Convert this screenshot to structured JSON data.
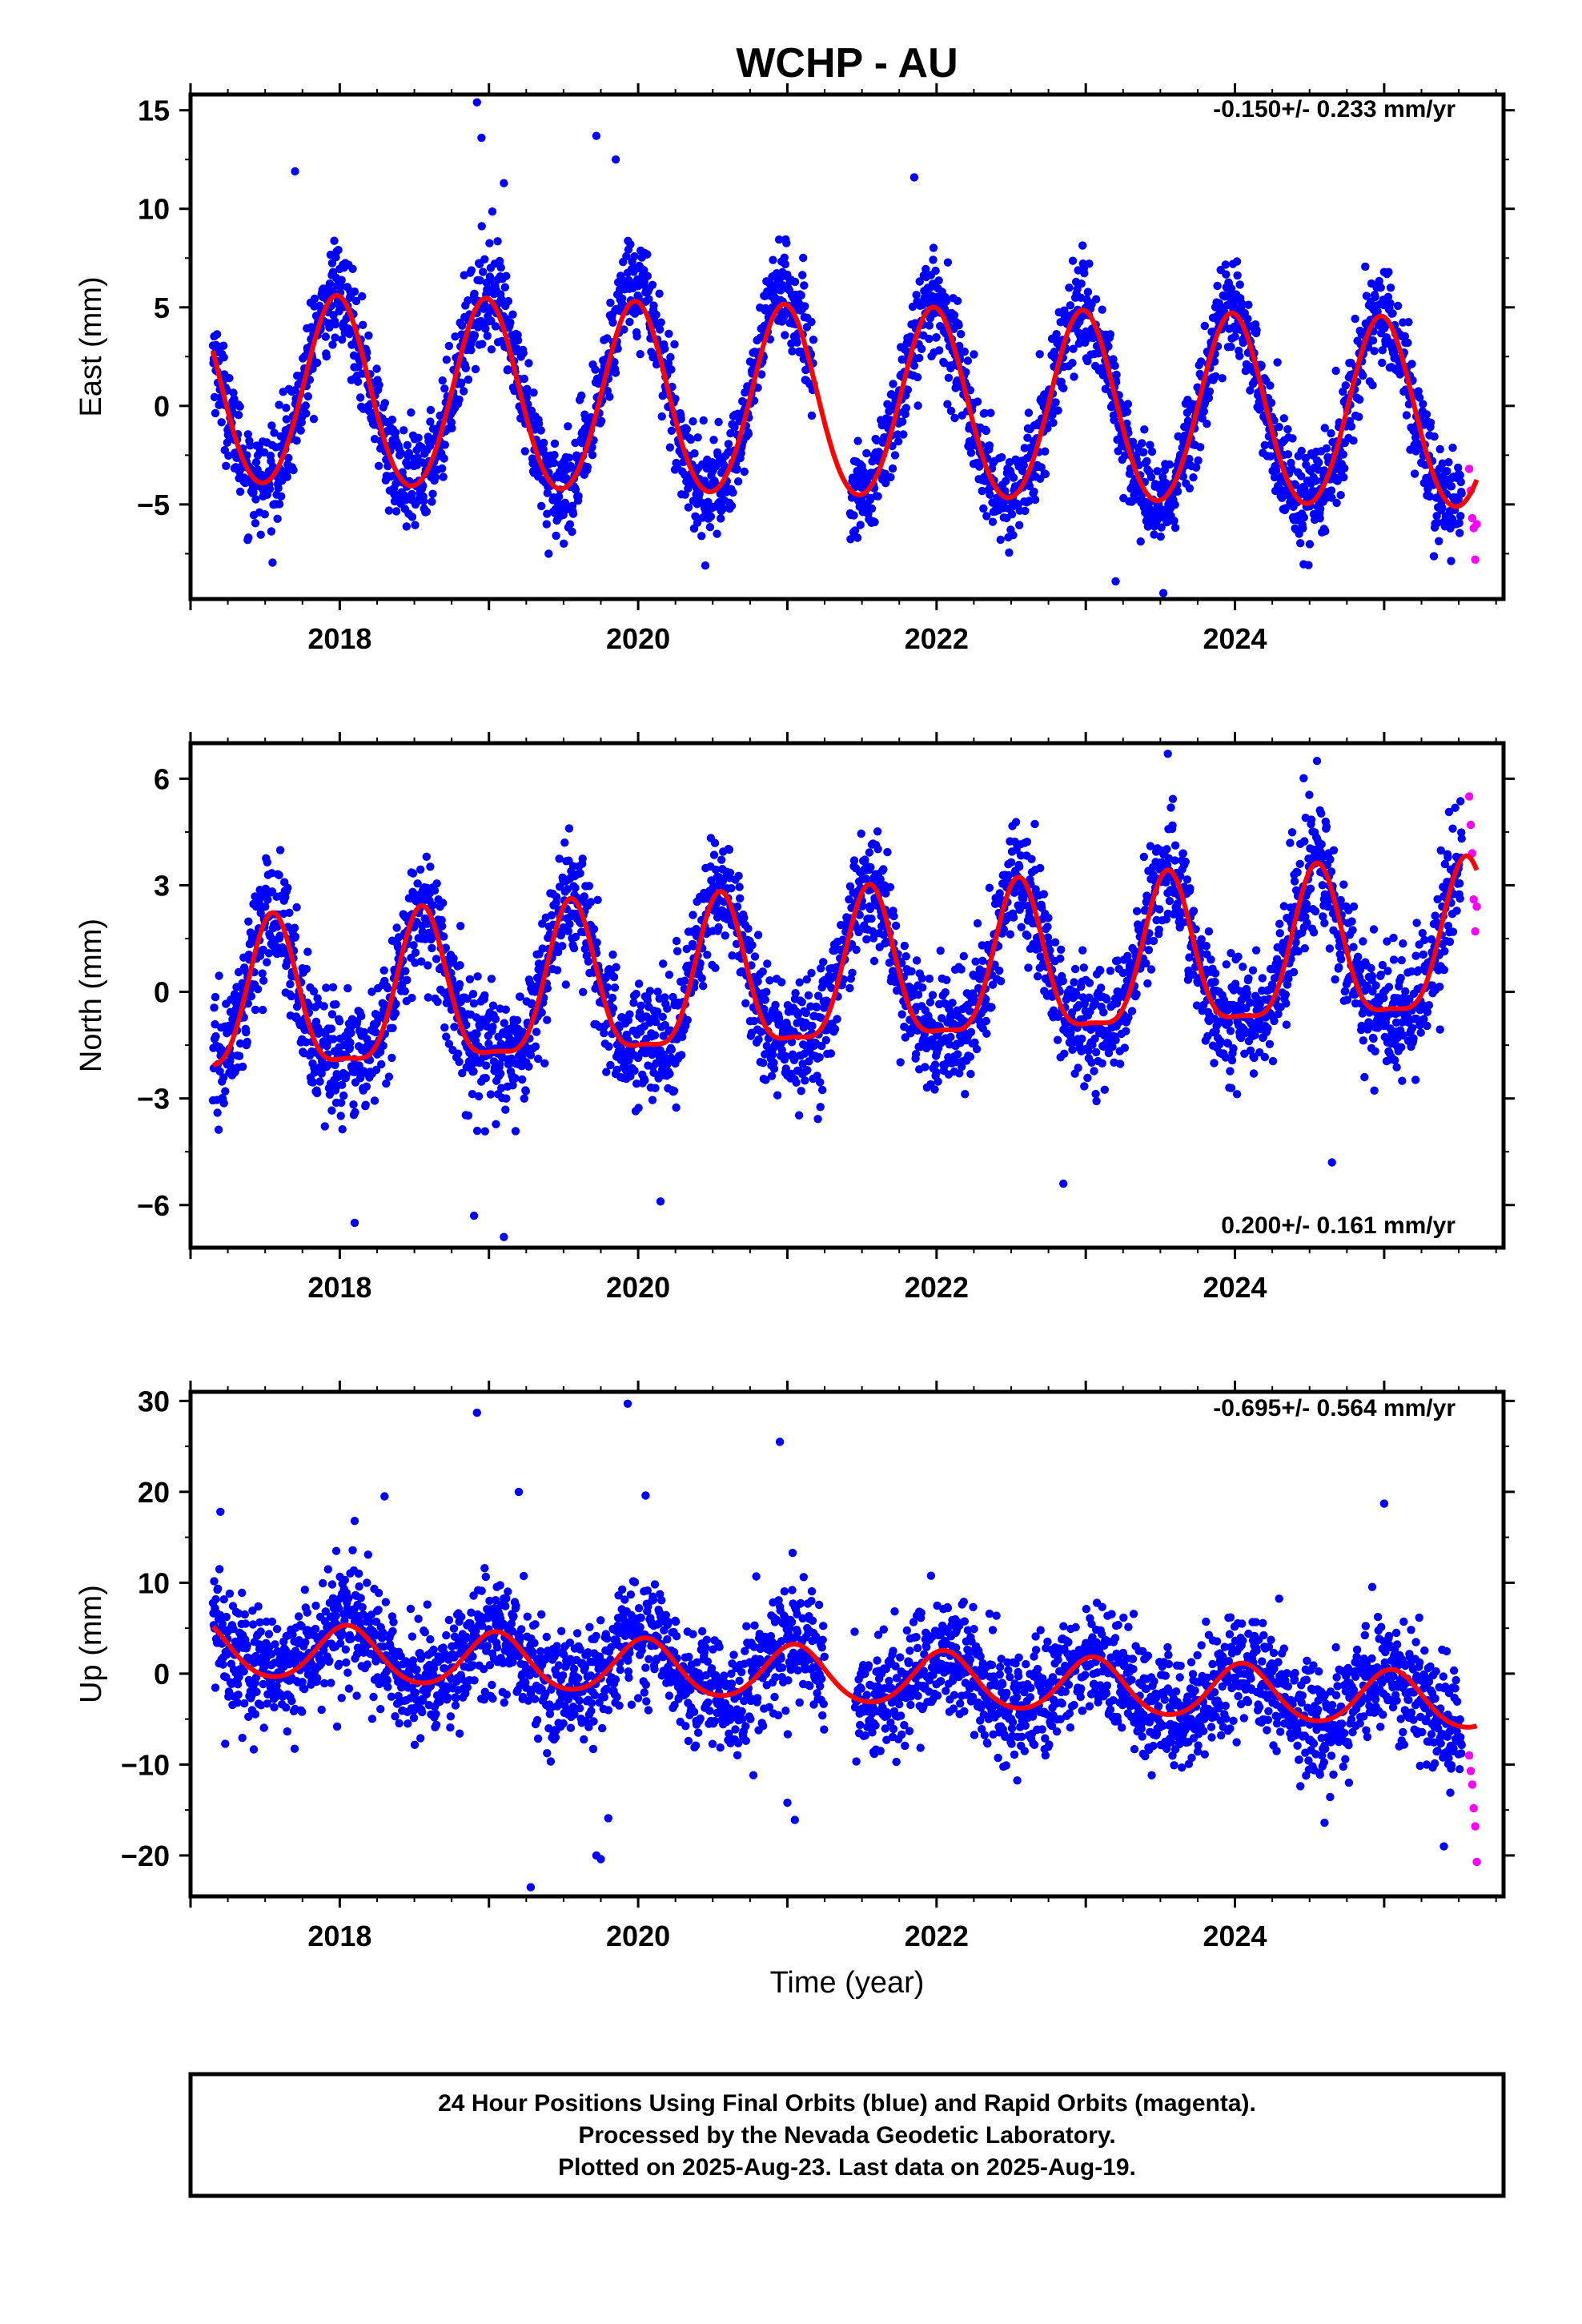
{
  "figure": {
    "title": "WCHP - AU",
    "x_axis_label": "Time (year)",
    "footer_lines": [
      "24 Hour Positions Using Final Orbits (blue) and Rapid Orbits (magenta).",
      "Processed by the Nevada Geodetic Laboratory.",
      "Plotted on 2025-Aug-23. Last data on 2025-Aug-19."
    ],
    "colors": {
      "final_orbits": "#0000ff",
      "rapid_orbits": "#ff00ff",
      "model_fit": "#ff0000"
    }
  },
  "chart_data": [
    {
      "type": "scatter",
      "ylabel": "East (mm)",
      "rate_text": "-0.150+/- 0.233 mm/yr",
      "xlim": [
        2017.0,
        2025.8
      ],
      "ylim": [
        -9.8,
        15.8
      ],
      "x_ticks": [
        2018,
        2020,
        2022,
        2024
      ],
      "y_ticks": [
        15,
        10,
        5,
        0,
        -5
      ],
      "data_start": 2017.15,
      "final_end": 2025.52,
      "rapid_end": 2025.63,
      "gaps": [
        [
          2021.18,
          2021.42
        ]
      ],
      "model": {
        "offset": 0.0,
        "trend_mm_per_yr": -0.15,
        "ref_year": 2021.4,
        "annual_amp": 4.8,
        "annual_peak": 2017.98,
        "semiannual_amp": 0.3,
        "semiannual_phase": 0.0
      },
      "scatter_sigma": 1.25,
      "extra_amp_by_year": [
        0,
        0,
        1.2,
        1.1,
        0.2,
        0,
        0,
        0,
        0
      ],
      "outliers": [
        [
          2018.92,
          15.4
        ],
        [
          2018.95,
          13.6
        ],
        [
          2019.72,
          13.7
        ],
        [
          2019.85,
          12.5
        ],
        [
          2017.7,
          11.9
        ],
        [
          2021.85,
          11.6
        ],
        [
          2019.1,
          11.3
        ],
        [
          2023.52,
          -9.5
        ],
        [
          2023.2,
          -8.9
        ],
        [
          2020.45,
          -8.1
        ],
        [
          2019.4,
          -7.5
        ]
      ],
      "rapid_points": [
        [
          2025.57,
          -3.2
        ],
        [
          2025.58,
          -4.3
        ],
        [
          2025.59,
          -5.7
        ],
        [
          2025.6,
          -6.2
        ],
        [
          2025.61,
          -7.8
        ],
        [
          2025.62,
          -6.0
        ]
      ]
    },
    {
      "type": "scatter",
      "ylabel": "North (mm)",
      "rate_text": "0.200+/- 0.161 mm/yr",
      "xlim": [
        2017.0,
        2025.8
      ],
      "ylim": [
        -7.2,
        7.0
      ],
      "x_ticks": [
        2018,
        2020,
        2022,
        2024
      ],
      "y_ticks": [
        6,
        3,
        0,
        -3,
        -6
      ],
      "data_start": 2017.15,
      "final_end": 2025.52,
      "rapid_end": 2025.63,
      "gaps": [],
      "model": {
        "offset": 0.3,
        "trend_mm_per_yr": 0.2,
        "ref_year": 2021.4,
        "annual_amp": 2.1,
        "annual_peak": 2017.55,
        "semiannual_amp": 0.6,
        "semiannual_phase": 0.0
      },
      "scatter_sigma": 0.85,
      "extra_amp_by_year": [
        0,
        0,
        0,
        0,
        0,
        0,
        0,
        0,
        0
      ],
      "outliers": [
        [
          2022.85,
          -5.4
        ],
        [
          2018.1,
          -6.5
        ],
        [
          2018.9,
          -6.3
        ],
        [
          2019.1,
          -6.9
        ],
        [
          2020.15,
          -5.9
        ],
        [
          2023.55,
          6.7
        ],
        [
          2024.55,
          6.5
        ],
        [
          2024.65,
          -4.8
        ]
      ],
      "rapid_points": [
        [
          2025.57,
          5.5
        ],
        [
          2025.58,
          4.7
        ],
        [
          2025.59,
          3.9
        ],
        [
          2025.6,
          2.6
        ],
        [
          2025.61,
          1.7
        ],
        [
          2025.62,
          2.4
        ]
      ]
    },
    {
      "type": "scatter",
      "ylabel": "Up (mm)",
      "rate_text": "-0.695+/- 0.564 mm/yr",
      "xlim": [
        2017.0,
        2025.8
      ],
      "ylim": [
        -24.5,
        31.0
      ],
      "x_ticks": [
        2018,
        2020,
        2022,
        2024
      ],
      "y_ticks": [
        30,
        20,
        10,
        0,
        -10,
        -20
      ],
      "data_start": 2017.15,
      "final_end": 2025.52,
      "rapid_end": 2025.63,
      "gaps": [
        [
          2021.25,
          2021.45
        ]
      ],
      "model": {
        "offset": -0.3,
        "trend_mm_per_yr": -0.695,
        "ref_year": 2021.4,
        "annual_amp": 3.0,
        "annual_peak": 2018.05,
        "semiannual_amp": 0.3,
        "semiannual_phase": 0.0
      },
      "scatter_sigma": 3.2,
      "extra_amp_by_year": [
        0,
        0,
        0,
        0,
        0,
        0,
        0,
        0,
        0
      ],
      "outliers": [
        [
          2018.92,
          28.7
        ],
        [
          2019.93,
          29.7
        ],
        [
          2020.95,
          25.5
        ],
        [
          2019.28,
          -23.5
        ],
        [
          2019.72,
          -20.0
        ],
        [
          2019.75,
          -20.4
        ],
        [
          2019.8,
          -15.9
        ],
        [
          2021.0,
          -14.2
        ],
        [
          2021.05,
          -16.1
        ],
        [
          2024.6,
          -16.4
        ],
        [
          2025.0,
          18.7
        ],
        [
          2017.2,
          17.8
        ],
        [
          2018.1,
          16.8
        ],
        [
          2019.2,
          20.0
        ],
        [
          2018.3,
          19.5
        ],
        [
          2020.05,
          19.6
        ],
        [
          2025.4,
          -19.0
        ]
      ],
      "rapid_points": [
        [
          2025.57,
          -9.0
        ],
        [
          2025.58,
          -10.7
        ],
        [
          2025.59,
          -12.2
        ],
        [
          2025.6,
          -14.8
        ],
        [
          2025.61,
          -16.8
        ],
        [
          2025.62,
          -20.7
        ]
      ]
    }
  ]
}
